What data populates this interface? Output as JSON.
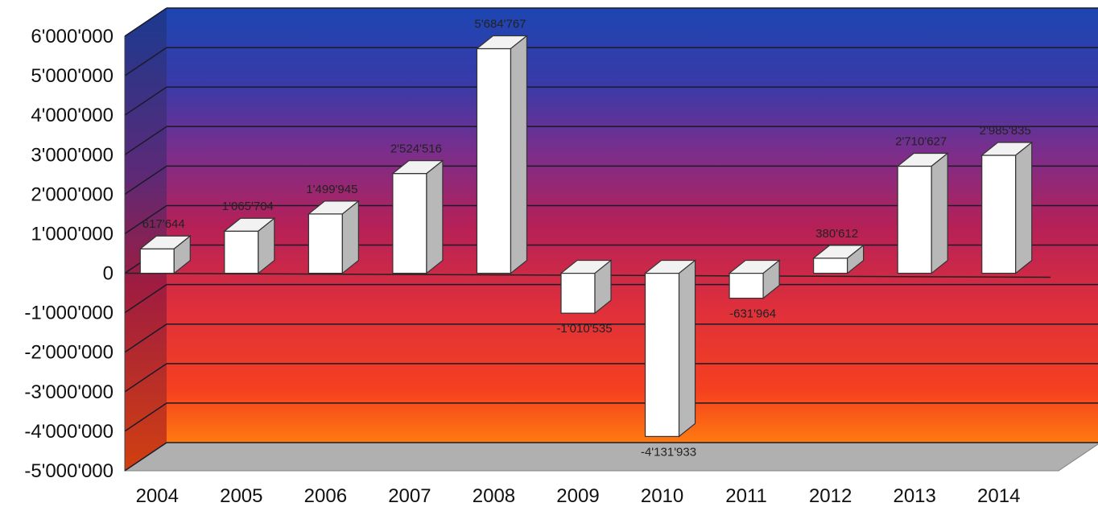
{
  "chart_data": {
    "type": "bar",
    "categories": [
      "2004",
      "2005",
      "2006",
      "2007",
      "2008",
      "2009",
      "2010",
      "2011",
      "2012",
      "2013",
      "2014"
    ],
    "series": [
      {
        "values": [
          617644,
          1065704,
          1499945,
          2524516,
          5684767,
          -1010535,
          -4131933,
          -631964,
          380612,
          2710627,
          2985835
        ],
        "labels": [
          "617'644",
          "1'065'704",
          "1'499'945",
          "2'524'516",
          "5'684'767",
          "-1'010'535",
          "-4'131'933",
          "-631'964",
          "380'612",
          "2'710'627",
          "2'985'835"
        ]
      }
    ],
    "yticks": [
      6000000,
      5000000,
      4000000,
      3000000,
      2000000,
      1000000,
      0,
      -1000000,
      -2000000,
      -3000000,
      -4000000,
      -5000000
    ],
    "ytick_labels": [
      "6'000'000",
      "5'000'000",
      "4'000'000",
      "3'000'000",
      "2'000'000",
      "1'000'000",
      "0",
      "-1'000'000",
      "-2'000'000",
      "-3'000'000",
      "-4'000'000",
      "-5'000'000"
    ],
    "ylim": [
      -5000000,
      6000000
    ],
    "grid": true,
    "style": "3d-column",
    "bar_color": "#ffffff",
    "background_gradient": [
      "#1a3fa8",
      "#7a2d8a",
      "#c02050",
      "#ff6a10"
    ]
  }
}
